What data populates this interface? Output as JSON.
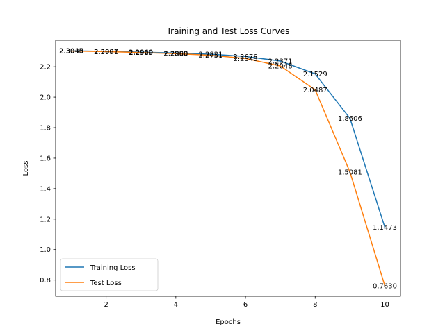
{
  "chart_data": {
    "type": "line",
    "title": "Training and Test Loss Curves",
    "xlabel": "Epochs",
    "ylabel": "Loss",
    "xlim": [
      0.55,
      10.45
    ],
    "ylim": [
      0.6938,
      2.3737
    ],
    "x_ticks": [
      2,
      4,
      6,
      8,
      10
    ],
    "y_ticks": [
      0.8,
      1.0,
      1.2,
      1.4,
      1.6,
      1.8,
      2.0,
      2.2
    ],
    "x": [
      1,
      2,
      3,
      4,
      5,
      6,
      7,
      8,
      9,
      10
    ],
    "series": [
      {
        "name": "Training Loss",
        "color": "#1f77b4",
        "values": [
          2.3045,
          2.3007,
          2.296,
          2.29,
          2.2821,
          2.2676,
          2.2371,
          2.1529,
          1.8606,
          1.1473
        ],
        "labels": [
          "2.3045",
          "2.3007",
          "2.2960",
          "2.2900",
          "2.2821",
          "2.2676",
          "2.2371",
          "2.1529",
          "1.8606",
          "1.1473"
        ]
      },
      {
        "name": "Test Loss",
        "color": "#ff7f0e",
        "values": [
          2.303,
          2.2991,
          2.2929,
          2.286,
          2.2751,
          2.254,
          2.2048,
          2.0487,
          1.5081,
          0.763
        ],
        "labels": [
          "2.3030",
          "2.2991",
          "2.2929",
          "2.2860",
          "2.2751",
          "2.2540",
          "2.2048",
          "2.0487",
          "1.5081",
          "0.7630"
        ]
      }
    ],
    "grid": false,
    "legend": "lower-left"
  }
}
